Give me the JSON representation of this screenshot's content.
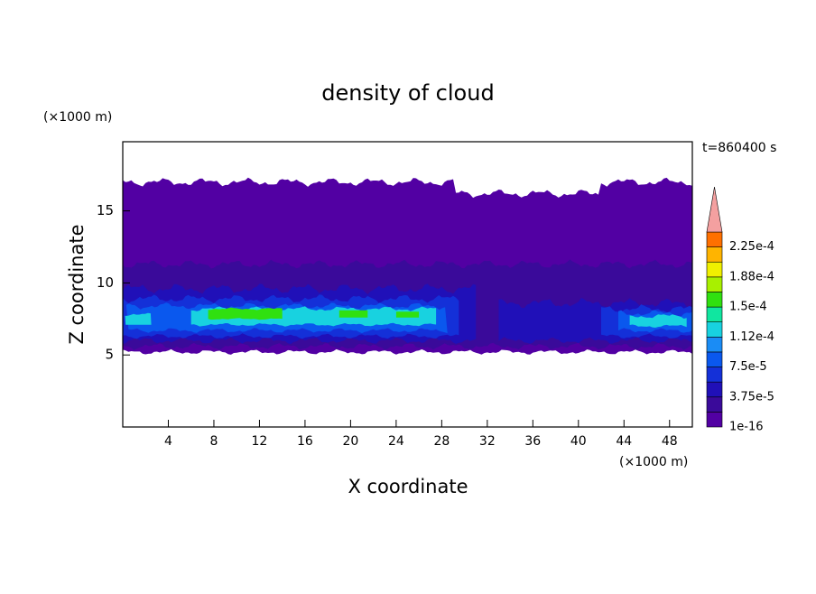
{
  "chart_data": {
    "type": "contour",
    "title": "density of cloud",
    "time_label": "t=860400 s",
    "x_label": "X coordinate",
    "y_label": "Z coordinate",
    "x_unit": "(×1000 m)",
    "y_unit": "(×1000 m)",
    "xlim": [
      0,
      50
    ],
    "ylim": [
      0,
      19.8
    ],
    "xticks": [
      4,
      8,
      12,
      16,
      20,
      24,
      28,
      32,
      36,
      40,
      44,
      48
    ],
    "yticks": [
      5,
      10,
      15
    ],
    "colorbar": {
      "levels": [
        1e-16,
        1.875e-05,
        3.75e-05,
        5.625e-05,
        7.5e-05,
        9.375e-05,
        0.0001125,
        0.00013125,
        0.00015,
        0.00016875,
        0.0001875,
        0.00020625,
        0.000225
      ],
      "level_labels": [
        "1e-16",
        null,
        "3.75e-5",
        null,
        "7.5e-5",
        null,
        "1.12e-4",
        null,
        "1.5e-4",
        null,
        "1.88e-4",
        null,
        "2.25e-4"
      ],
      "colors": [
        "#5200a3",
        "#3a0a9a",
        "#2010b8",
        "#1430d8",
        "#0a58ee",
        "#1a8cf5",
        "#18d2e0",
        "#10e6a0",
        "#30e010",
        "#a8f000",
        "#f0f000",
        "#ffb400",
        "#ff7000",
        "#ff2a00"
      ],
      "over_color": "#f4a0a0"
    }
  }
}
